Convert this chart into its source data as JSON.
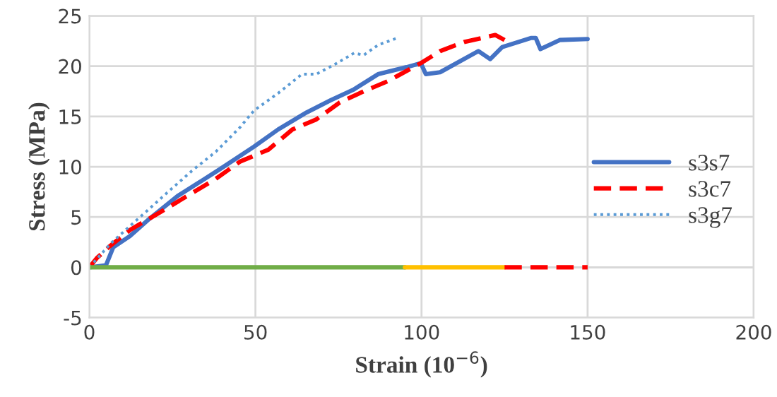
{
  "chart_data": {
    "type": "line",
    "xlabel": "Strain (10$^{−6}$)",
    "ylabel": "Stress (MPa)",
    "xlim": [
      0,
      200
    ],
    "xticks": [
      0,
      50,
      100,
      150,
      200
    ],
    "ylim": [
      -5,
      25
    ],
    "yticks": [
      -5,
      0,
      5,
      10,
      15,
      20,
      25
    ],
    "grid": true,
    "legend": "right",
    "marker": "none",
    "series": [
      {
        "name": "s3s7",
        "color": "#4472c4",
        "line_style": "solid",
        "x": [
          0,
          5.0,
          7.2,
          12.2,
          18.0,
          26.6,
          33.8,
          39.5,
          49.6,
          56.8,
          65.4,
          72.6,
          79.7,
          86.9,
          95.5,
          99.8,
          101.3,
          105.6,
          117.1,
          120.7,
          124.3,
          132.9,
          134.4,
          135.8,
          141.6,
          150
        ],
        "values": [
          0,
          0.2,
          2.0,
          3.1,
          4.8,
          7.1,
          8.6,
          9.8,
          12.0,
          13.7,
          15.4,
          16.6,
          17.7,
          19.2,
          19.9,
          20.3,
          19.2,
          19.4,
          21.5,
          20.7,
          21.9,
          22.8,
          22.8,
          21.7,
          22.6,
          22.7
        ]
      },
      {
        "name": "s3c7",
        "color": "#ff0000",
        "line_style": "dashed",
        "x": [
          0,
          2.2,
          5.8,
          12.2,
          20.9,
          29.5,
          38.1,
          45.3,
          53.9,
          61.1,
          68.3,
          75.4,
          82.6,
          89.8,
          99.8,
          105.6,
          112.8,
          122.2,
          125
        ],
        "values": [
          0,
          0.9,
          2.0,
          3.7,
          5.4,
          7.1,
          8.8,
          10.5,
          11.7,
          13.7,
          14.7,
          16.4,
          17.5,
          18.5,
          20.3,
          21.5,
          22.4,
          23.1,
          22.6
        ]
      },
      {
        "name": "s3g7",
        "color": "#5b9bd5",
        "line_style": "dotted",
        "x": [
          0,
          6.5,
          12.2,
          18.0,
          23.7,
          30.9,
          38.1,
          45.3,
          49.6,
          56.8,
          64.0,
          68.3,
          74.0,
          79.7,
          82.6,
          86.9,
          92.7
        ],
        "values": [
          0,
          2.4,
          4.1,
          5.8,
          7.5,
          9.6,
          11.5,
          13.9,
          15.6,
          17.3,
          19.2,
          19.2,
          20.2,
          21.3,
          21.1,
          22.1,
          22.8
        ]
      },
      {
        "color": "#70ad47",
        "line_style": "solid",
        "x": [
          0,
          95
        ],
        "values": [
          0,
          0
        ]
      },
      {
        "color": "#ffc000",
        "line_style": "solid",
        "x": [
          95,
          125
        ],
        "values": [
          0,
          0
        ]
      },
      {
        "color": "#ff0000",
        "line_style": "dashed",
        "x": [
          125,
          150
        ],
        "values": [
          0,
          0
        ]
      }
    ]
  }
}
